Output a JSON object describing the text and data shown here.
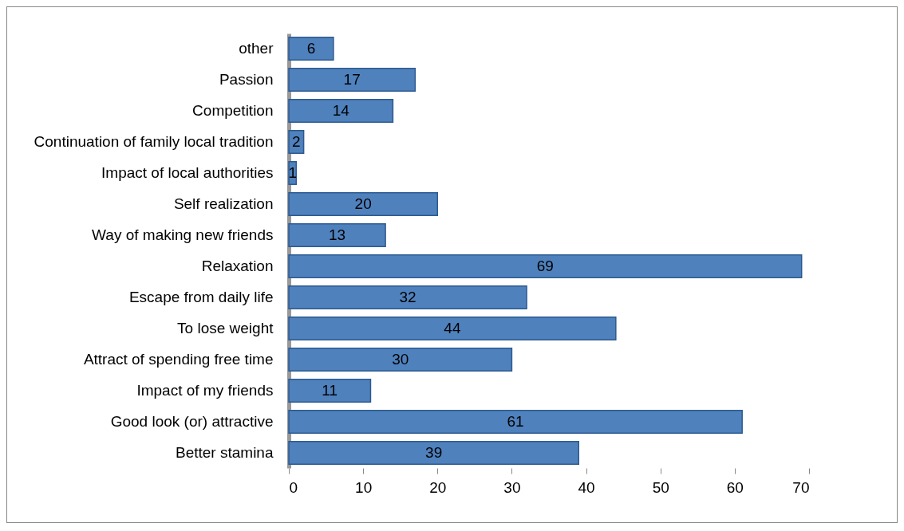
{
  "chart_data": {
    "type": "bar",
    "orientation": "horizontal",
    "categories": [
      "other",
      "Passion",
      "Competition",
      "Continuation of family local tradition",
      "Impact of local authorities",
      "Self realization",
      "Way of making new friends",
      "Relaxation",
      "Escape from daily life",
      "To lose weight",
      "Attract of spending free time",
      "Impact of my friends",
      "Good look (or) attractive",
      "Better stamina"
    ],
    "values": [
      6,
      17,
      14,
      2,
      1,
      20,
      13,
      69,
      32,
      44,
      30,
      11,
      61,
      39
    ],
    "color": "#4f81bd",
    "xlim": [
      0,
      70
    ],
    "xticks": [
      0,
      10,
      20,
      30,
      40,
      50,
      60,
      70
    ],
    "grid": false,
    "data_labels": true
  }
}
